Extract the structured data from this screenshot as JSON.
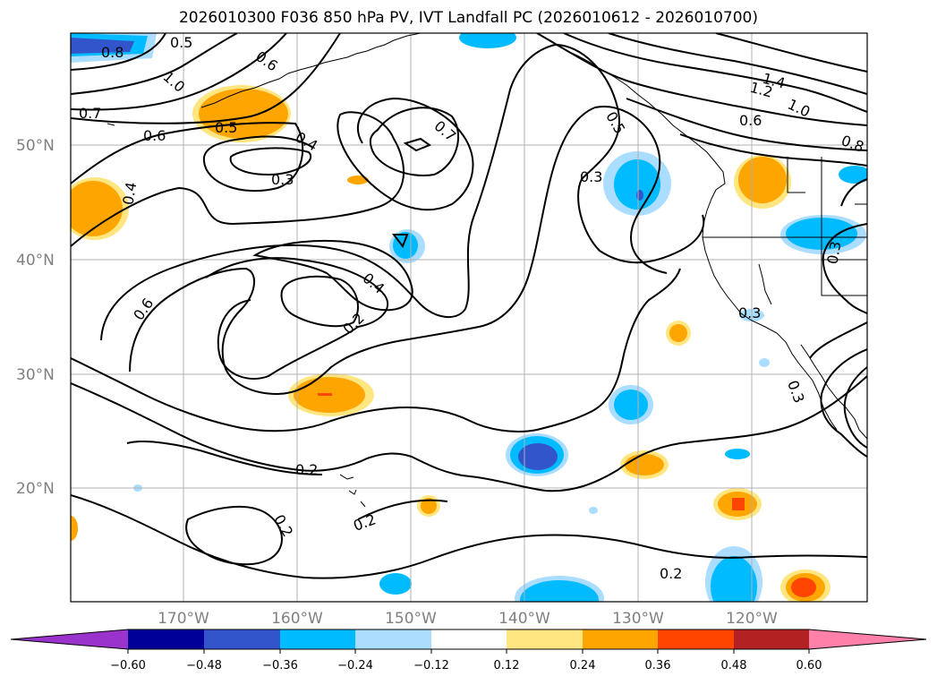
{
  "title": "2026010300 F036 850 hPa PV, IVT Landfall PC (2026010612 - 2026010700)",
  "lat_labels": [
    "50°N",
    "40°N",
    "30°N",
    "20°N"
  ],
  "lon_labels": [
    "170°W",
    "160°W",
    "150°W",
    "140°W",
    "130°W",
    "120°W"
  ],
  "colorbar": {
    "colors": [
      "#9933cc",
      "#000099",
      "#3355cc",
      "#00bbff",
      "#aaddff",
      "#ffffff",
      "#ffe680",
      "#ffa500",
      "#ff4500",
      "#b22222",
      "#ff80a8"
    ],
    "tick_labels": [
      "−0.60",
      "−0.48",
      "−0.36",
      "−0.24",
      "−0.12",
      "0.12",
      "0.24",
      "0.36",
      "0.48",
      "0.60"
    ]
  },
  "contour_labels": [
    "0.8",
    "0.5",
    "0.6",
    "1.0",
    "0.7",
    "0.6",
    "0.5",
    "0.4",
    "0.3",
    "0.4",
    "0.7",
    "0.6",
    "0.4",
    "0.2",
    "0.2",
    "0.2",
    "0.2",
    "0.3",
    "1.4",
    "1.2",
    "1.0",
    "0.6",
    "0.8",
    "0.5",
    "0.3",
    "0.3",
    "0.3",
    "0.2"
  ]
}
